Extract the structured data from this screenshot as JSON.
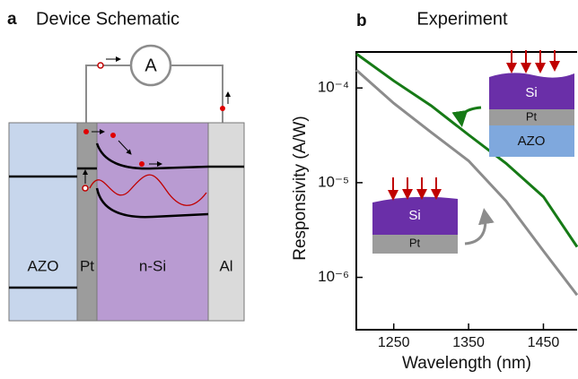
{
  "panel_a": {
    "label": "a",
    "title": "Device Schematic",
    "meter": "A",
    "layers": [
      "AZO",
      "Pt",
      "n-Si",
      "Al"
    ]
  },
  "chart_data": {
    "type": "line",
    "panel_label": "b",
    "title": "Experiment",
    "x_label": "Wavelength (nm)",
    "y_label": "Responsivity (A/W)",
    "x": [
      1200,
      1250,
      1300,
      1350,
      1400,
      1450,
      1495
    ],
    "series": [
      {
        "color": "#167a16",
        "values": [
          0.00023,
          0.000119,
          6.5e-05,
          3.2e-05,
          1.6e-05,
          7.1e-06,
          2.1e-06
        ]
      },
      {
        "color": "#8c8c8c",
        "values": [
          0.000155,
          6.9e-05,
          3.4e-05,
          1.7e-05,
          6.4e-06,
          1.9e-06,
          6.5e-07
        ]
      }
    ],
    "yscale": "log",
    "xlim": [
      1200,
      1495
    ],
    "ylim": [
      2.8e-07,
      0.00024
    ],
    "xticks": [
      1250,
      1350,
      1450
    ],
    "yticks": [
      {
        "value": 0.0001,
        "label": "10⁻⁴"
      },
      {
        "value": 1e-05,
        "label": "10⁻⁵"
      },
      {
        "value": 1e-06,
        "label": "10⁻⁶"
      }
    ],
    "insets": [
      {
        "layers": [
          "Si",
          "Pt",
          "AZO"
        ]
      },
      {
        "layers": [
          "Si",
          "Pt"
        ]
      }
    ]
  }
}
